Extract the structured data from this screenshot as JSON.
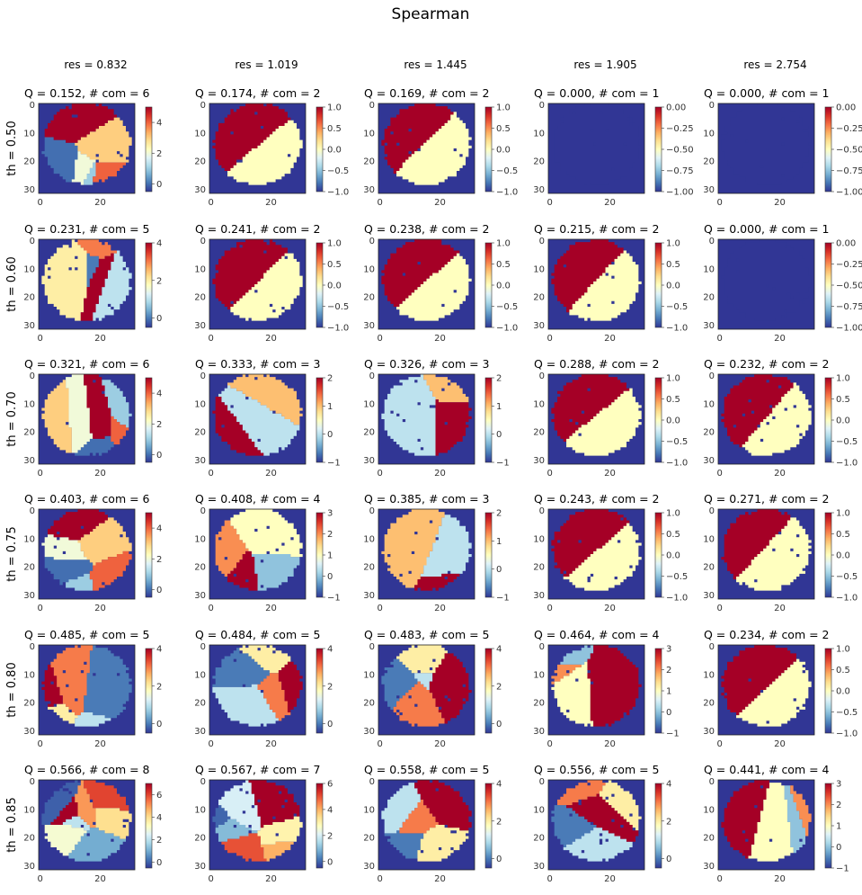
{
  "figure": {
    "suptitle": "Spearman"
  },
  "chart_data": {
    "type": "heatmap",
    "title": "Spearman",
    "columns": [
      {
        "label": "res = 0.832"
      },
      {
        "label": "res = 1.019"
      },
      {
        "label": "res = 1.445"
      },
      {
        "label": "res = 1.905"
      },
      {
        "label": "res = 2.754"
      }
    ],
    "rows": [
      {
        "label": "th = 0.50"
      },
      {
        "label": "th = 0.60"
      },
      {
        "label": "th = 0.70"
      },
      {
        "label": "th = 0.75"
      },
      {
        "label": "th = 0.80"
      },
      {
        "label": "th = 0.85"
      }
    ],
    "axis": {
      "x_ticks": [
        "0",
        "20"
      ],
      "y_ticks": [
        "0",
        "10",
        "20",
        "30"
      ],
      "x_range": [
        0,
        32
      ],
      "y_range": [
        0,
        32
      ]
    },
    "colormap": "RdYlBu_r",
    "background_color": "#313695",
    "panels": [
      [
        {
          "title": "Q = 0.152,  # com = 6",
          "Q": 0.152,
          "n_com": 6,
          "cbar_ticks": [
            "0",
            "2",
            "4"
          ],
          "cbar_min": -0.5,
          "cbar_max": 5
        },
        {
          "title": "Q = 0.174,  # com = 2",
          "Q": 0.174,
          "n_com": 2,
          "cbar_ticks": [
            "−1.0",
            "−0.5",
            "0.0",
            "0.5",
            "1.0"
          ],
          "cbar_min": -1,
          "cbar_max": 1
        },
        {
          "title": "Q = 0.169,  # com = 2",
          "Q": 0.169,
          "n_com": 2,
          "cbar_ticks": [
            "−1.0",
            "−0.5",
            "0.0",
            "0.5",
            "1.0"
          ],
          "cbar_min": -1,
          "cbar_max": 1
        },
        {
          "title": "Q = 0.000,  # com = 1",
          "Q": 0.0,
          "n_com": 1,
          "cbar_ticks": [
            "−1.00",
            "−0.75",
            "−0.50",
            "−0.25",
            "0.00"
          ],
          "cbar_min": -1,
          "cbar_max": 0
        },
        {
          "title": "Q = 0.000,  # com = 1",
          "Q": 0.0,
          "n_com": 1,
          "cbar_ticks": [
            "−1.00",
            "−0.75",
            "−0.50",
            "−0.25",
            "0.00"
          ],
          "cbar_min": -1,
          "cbar_max": 0
        }
      ],
      [
        {
          "title": "Q = 0.231,  # com = 5",
          "Q": 0.231,
          "n_com": 5,
          "cbar_ticks": [
            "0",
            "2",
            "4"
          ],
          "cbar_min": -0.5,
          "cbar_max": 4
        },
        {
          "title": "Q = 0.241,  # com = 2",
          "Q": 0.241,
          "n_com": 2,
          "cbar_ticks": [
            "−1.0",
            "−0.5",
            "0.0",
            "0.5",
            "1.0"
          ],
          "cbar_min": -1,
          "cbar_max": 1
        },
        {
          "title": "Q = 0.238,  # com = 2",
          "Q": 0.238,
          "n_com": 2,
          "cbar_ticks": [
            "−1.0",
            "−0.5",
            "0.0",
            "0.5",
            "1.0"
          ],
          "cbar_min": -1,
          "cbar_max": 1
        },
        {
          "title": "Q = 0.215,  # com = 2",
          "Q": 0.215,
          "n_com": 2,
          "cbar_ticks": [
            "−1.0",
            "−0.5",
            "0.0",
            "0.5",
            "1.0"
          ],
          "cbar_min": -1,
          "cbar_max": 1
        },
        {
          "title": "Q = 0.000,  # com = 1",
          "Q": 0.0,
          "n_com": 1,
          "cbar_ticks": [
            "−1.00",
            "−0.75",
            "−0.50",
            "−0.25",
            "0.00"
          ],
          "cbar_min": -1,
          "cbar_max": 0
        }
      ],
      [
        {
          "title": "Q = 0.321,  # com = 6",
          "Q": 0.321,
          "n_com": 6,
          "cbar_ticks": [
            "0",
            "2",
            "4"
          ],
          "cbar_min": -0.5,
          "cbar_max": 5
        },
        {
          "title": "Q = 0.333,  # com = 3",
          "Q": 0.333,
          "n_com": 3,
          "cbar_ticks": [
            "−1",
            "0",
            "1",
            "2"
          ],
          "cbar_min": -1,
          "cbar_max": 2
        },
        {
          "title": "Q = 0.326,  # com = 3",
          "Q": 0.326,
          "n_com": 3,
          "cbar_ticks": [
            "−1",
            "0",
            "1",
            "2"
          ],
          "cbar_min": -1,
          "cbar_max": 2
        },
        {
          "title": "Q = 0.288,  # com = 2",
          "Q": 0.288,
          "n_com": 2,
          "cbar_ticks": [
            "−1.0",
            "−0.5",
            "0.0",
            "0.5",
            "1.0"
          ],
          "cbar_min": -1,
          "cbar_max": 1
        },
        {
          "title": "Q = 0.232,  # com = 2",
          "Q": 0.232,
          "n_com": 2,
          "cbar_ticks": [
            "−1.0",
            "−0.5",
            "0.0",
            "0.5",
            "1.0"
          ],
          "cbar_min": -1,
          "cbar_max": 1
        }
      ],
      [
        {
          "title": "Q = 0.403,  # com = 6",
          "Q": 0.403,
          "n_com": 6,
          "cbar_ticks": [
            "0",
            "2",
            "4"
          ],
          "cbar_min": -0.5,
          "cbar_max": 5
        },
        {
          "title": "Q = 0.408,  # com = 4",
          "Q": 0.408,
          "n_com": 4,
          "cbar_ticks": [
            "−1",
            "0",
            "1",
            "2",
            "3"
          ],
          "cbar_min": -1,
          "cbar_max": 3
        },
        {
          "title": "Q = 0.385,  # com = 3",
          "Q": 0.385,
          "n_com": 3,
          "cbar_ticks": [
            "−1",
            "0",
            "1",
            "2"
          ],
          "cbar_min": -1,
          "cbar_max": 2
        },
        {
          "title": "Q = 0.243,  # com = 2",
          "Q": 0.243,
          "n_com": 2,
          "cbar_ticks": [
            "−1.0",
            "−0.5",
            "0.0",
            "0.5",
            "1.0"
          ],
          "cbar_min": -1,
          "cbar_max": 1
        },
        {
          "title": "Q = 0.271,  # com = 2",
          "Q": 0.271,
          "n_com": 2,
          "cbar_ticks": [
            "−1.0",
            "−0.5",
            "0.0",
            "0.5",
            "1.0"
          ],
          "cbar_min": -1,
          "cbar_max": 1
        }
      ],
      [
        {
          "title": "Q = 0.485,  # com = 5",
          "Q": 0.485,
          "n_com": 5,
          "cbar_ticks": [
            "0",
            "2",
            "4"
          ],
          "cbar_min": -0.5,
          "cbar_max": 4
        },
        {
          "title": "Q = 0.484,  # com = 5",
          "Q": 0.484,
          "n_com": 5,
          "cbar_ticks": [
            "0",
            "2",
            "4"
          ],
          "cbar_min": -0.5,
          "cbar_max": 4
        },
        {
          "title": "Q = 0.483,  # com = 5",
          "Q": 0.483,
          "n_com": 5,
          "cbar_ticks": [
            "0",
            "2",
            "4"
          ],
          "cbar_min": -0.5,
          "cbar_max": 4
        },
        {
          "title": "Q = 0.464,  # com = 4",
          "Q": 0.464,
          "n_com": 4,
          "cbar_ticks": [
            "−1",
            "0",
            "1",
            "2",
            "3"
          ],
          "cbar_min": -1,
          "cbar_max": 3
        },
        {
          "title": "Q = 0.234,  # com = 2",
          "Q": 0.234,
          "n_com": 2,
          "cbar_ticks": [
            "−1.0",
            "−0.5",
            "0.0",
            "0.5",
            "1.0"
          ],
          "cbar_min": -1,
          "cbar_max": 1
        }
      ],
      [
        {
          "title": "Q = 0.566,  # com = 8",
          "Q": 0.566,
          "n_com": 8,
          "cbar_ticks": [
            "0",
            "2",
            "4",
            "6"
          ],
          "cbar_min": -0.5,
          "cbar_max": 7
        },
        {
          "title": "Q = 0.567,  # com = 7",
          "Q": 0.567,
          "n_com": 7,
          "cbar_ticks": [
            "0",
            "2",
            "4",
            "6"
          ],
          "cbar_min": -0.5,
          "cbar_max": 6
        },
        {
          "title": "Q = 0.558,  # com = 5",
          "Q": 0.558,
          "n_com": 5,
          "cbar_ticks": [
            "0",
            "2",
            "4"
          ],
          "cbar_min": -0.5,
          "cbar_max": 4
        },
        {
          "title": "Q = 0.556,  # com = 5",
          "Q": 0.556,
          "n_com": 5,
          "cbar_ticks": [
            "0",
            "2",
            "4"
          ],
          "cbar_min": -0.5,
          "cbar_max": 4
        },
        {
          "title": "Q = 0.441,  # com = 4",
          "Q": 0.441,
          "n_com": 4,
          "cbar_ticks": [
            "−1",
            "0",
            "1",
            "2",
            "3"
          ],
          "cbar_min": -1,
          "cbar_max": 3
        }
      ]
    ]
  }
}
